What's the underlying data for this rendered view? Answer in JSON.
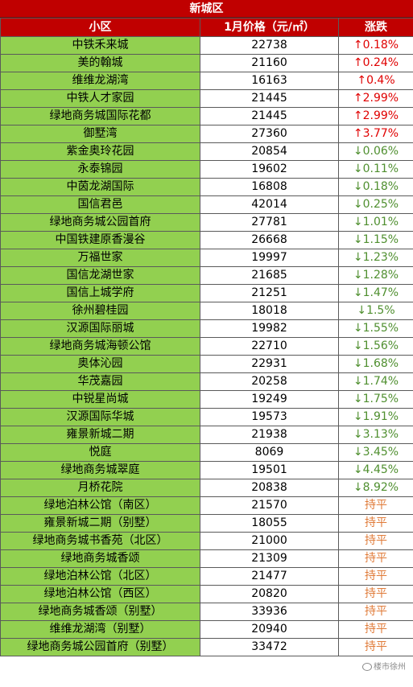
{
  "table": {
    "title": "新城区",
    "headers": [
      "小区",
      "1月价格（元/㎡）",
      "涨跌"
    ],
    "rows": [
      {
        "name": "中铁禾来城",
        "price": "22738",
        "change": "↑0.18%",
        "dir": "up"
      },
      {
        "name": "美的翰城",
        "price": "21160",
        "change": "↑0.24%",
        "dir": "up"
      },
      {
        "name": "维维龙湖湾",
        "price": "16163",
        "change": "↑0.4%",
        "dir": "up"
      },
      {
        "name": "中铁人才家园",
        "price": "21445",
        "change": "↑2.99%",
        "dir": "up"
      },
      {
        "name": "绿地商务城国际花都",
        "price": "21445",
        "change": "↑2.99%",
        "dir": "up"
      },
      {
        "name": "御墅湾",
        "price": "27360",
        "change": "↑3.77%",
        "dir": "up"
      },
      {
        "name": "紫金奥玲花园",
        "price": "20854",
        "change": "↓0.06%",
        "dir": "down"
      },
      {
        "name": "永泰锦园",
        "price": "19602",
        "change": "↓0.11%",
        "dir": "down"
      },
      {
        "name": "中茵龙湖国际",
        "price": "16808",
        "change": "↓0.18%",
        "dir": "down"
      },
      {
        "name": "国信君邑",
        "price": "42014",
        "change": "↓0.25%",
        "dir": "down"
      },
      {
        "name": "绿地商务城公园首府",
        "price": "27781",
        "change": "↓1.01%",
        "dir": "down"
      },
      {
        "name": "中国铁建原香漫谷",
        "price": "26668",
        "change": "↓1.15%",
        "dir": "down"
      },
      {
        "name": "万福世家",
        "price": "19997",
        "change": "↓1.23%",
        "dir": "down"
      },
      {
        "name": "国信龙湖世家",
        "price": "21685",
        "change": "↓1.28%",
        "dir": "down"
      },
      {
        "name": "国信上城学府",
        "price": "21251",
        "change": "↓1.47%",
        "dir": "down"
      },
      {
        "name": "徐州碧桂园",
        "price": "18018",
        "change": "↓1.5%",
        "dir": "down"
      },
      {
        "name": "汉源国际丽城",
        "price": "19982",
        "change": "↓1.55%",
        "dir": "down"
      },
      {
        "name": "绿地商务城海顿公馆",
        "price": "22710",
        "change": "↓1.56%",
        "dir": "down"
      },
      {
        "name": "奥体沁园",
        "price": "22931",
        "change": "↓1.68%",
        "dir": "down"
      },
      {
        "name": "华茂嘉园",
        "price": "20258",
        "change": "↓1.74%",
        "dir": "down"
      },
      {
        "name": "中锐星尚城",
        "price": "19249",
        "change": "↓1.75%",
        "dir": "down"
      },
      {
        "name": "汉源国际华城",
        "price": "19573",
        "change": "↓1.91%",
        "dir": "down"
      },
      {
        "name": "雍景新城二期",
        "price": "21938",
        "change": "↓3.13%",
        "dir": "down"
      },
      {
        "name": "悦庭",
        "price": "8069",
        "change": "↓3.45%",
        "dir": "down"
      },
      {
        "name": "绿地商务城翠庭",
        "price": "19501",
        "change": "↓4.45%",
        "dir": "down"
      },
      {
        "name": "月桥花院",
        "price": "20838",
        "change": "↓8.92%",
        "dir": "down"
      },
      {
        "name": "绿地泊林公馆（南区）",
        "price": "21570",
        "change": "持平",
        "dir": "flat"
      },
      {
        "name": "雍景新城二期（别墅）",
        "price": "18055",
        "change": "持平",
        "dir": "flat"
      },
      {
        "name": "绿地商务城书香苑（北区）",
        "price": "21000",
        "change": "持平",
        "dir": "flat"
      },
      {
        "name": "绿地商务城香颂",
        "price": "21309",
        "change": "持平",
        "dir": "flat"
      },
      {
        "name": "绿地泊林公馆（北区）",
        "price": "21477",
        "change": "持平",
        "dir": "flat"
      },
      {
        "name": "绿地泊林公馆（西区）",
        "price": "20820",
        "change": "持平",
        "dir": "flat"
      },
      {
        "name": "绿地商务城香颂（别墅）",
        "price": "33936",
        "change": "持平",
        "dir": "flat"
      },
      {
        "name": "维维龙湖湾（别墅）",
        "price": "20940",
        "change": "持平",
        "dir": "flat"
      },
      {
        "name": "绿地商务城公园首府（别墅）",
        "price": "33472",
        "change": "持平",
        "dir": "flat"
      }
    ]
  },
  "watermark": {
    "text": "楼市徐州",
    "icon": "wechat-icon"
  },
  "colors": {
    "header": "#c00000",
    "name_cell": "#92d050",
    "up": "#e00000",
    "down": "#4f8f2f",
    "flat": "#e07b39"
  }
}
